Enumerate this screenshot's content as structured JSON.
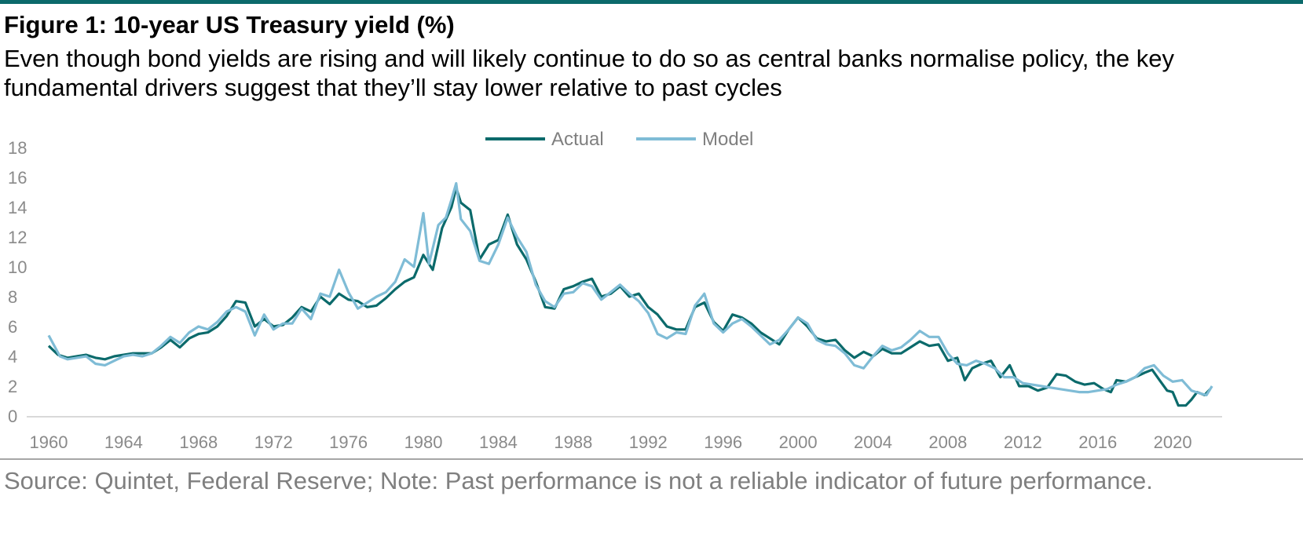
{
  "header": {
    "title": "Figure 1: 10-year US Treasury yield (%)",
    "subtitle": "Even though bond yields are rising and will likely continue to do so as central banks normalise policy, the key fundamental drivers suggest that they’ll stay lower relative to past cycles"
  },
  "footer": {
    "source": "Source: Quintet, Federal Reserve; Note: Past performance is not a reliable indicator of future performance."
  },
  "colors": {
    "actual": "#0b6a6b",
    "model": "#7fbcd6",
    "axis": "#d9d9d9",
    "tick_text": "#8a8a8a",
    "accent_bar": "#0b6a6b"
  },
  "chart_data": {
    "type": "line",
    "legend_position": "top-center",
    "grid": false,
    "xlim": [
      1960,
      2022.3
    ],
    "ylim": [
      0,
      18
    ],
    "xticks": [
      "1960",
      "1964",
      "1968",
      "1972",
      "1976",
      "1980",
      "1984",
      "1988",
      "1992",
      "1996",
      "2000",
      "2004",
      "2008",
      "2012",
      "2016",
      "2020"
    ],
    "yticks": [
      "0",
      "2",
      "4",
      "6",
      "8",
      "10",
      "12",
      "14",
      "16",
      "18"
    ],
    "series": [
      {
        "name": "Actual",
        "color": "#0b6a6b",
        "points": [
          [
            1960.0,
            4.7
          ],
          [
            1960.5,
            4.1
          ],
          [
            1961.0,
            3.9
          ],
          [
            1961.5,
            4.0
          ],
          [
            1962.0,
            4.1
          ],
          [
            1962.5,
            3.9
          ],
          [
            1963.0,
            3.8
          ],
          [
            1963.5,
            4.0
          ],
          [
            1964.0,
            4.1
          ],
          [
            1964.5,
            4.2
          ],
          [
            1965.0,
            4.2
          ],
          [
            1965.5,
            4.2
          ],
          [
            1966.0,
            4.6
          ],
          [
            1966.5,
            5.1
          ],
          [
            1967.0,
            4.6
          ],
          [
            1967.5,
            5.2
          ],
          [
            1968.0,
            5.5
          ],
          [
            1968.5,
            5.6
          ],
          [
            1969.0,
            6.0
          ],
          [
            1969.5,
            6.7
          ],
          [
            1970.0,
            7.7
          ],
          [
            1970.5,
            7.6
          ],
          [
            1971.0,
            6.0
          ],
          [
            1971.5,
            6.5
          ],
          [
            1972.0,
            6.0
          ],
          [
            1972.5,
            6.1
          ],
          [
            1973.0,
            6.6
          ],
          [
            1973.5,
            7.3
          ],
          [
            1974.0,
            7.0
          ],
          [
            1974.5,
            8.0
          ],
          [
            1975.0,
            7.5
          ],
          [
            1975.5,
            8.2
          ],
          [
            1976.0,
            7.8
          ],
          [
            1976.5,
            7.7
          ],
          [
            1977.0,
            7.3
          ],
          [
            1977.5,
            7.4
          ],
          [
            1978.0,
            7.9
          ],
          [
            1978.5,
            8.5
          ],
          [
            1979.0,
            9.0
          ],
          [
            1979.5,
            9.3
          ],
          [
            1980.0,
            10.8
          ],
          [
            1980.5,
            9.8
          ],
          [
            1981.0,
            12.6
          ],
          [
            1981.5,
            14.0
          ],
          [
            1981.75,
            15.3
          ],
          [
            1982.0,
            14.3
          ],
          [
            1982.5,
            13.8
          ],
          [
            1983.0,
            10.5
          ],
          [
            1983.5,
            11.5
          ],
          [
            1984.0,
            11.8
          ],
          [
            1984.5,
            13.5
          ],
          [
            1985.0,
            11.5
          ],
          [
            1985.5,
            10.5
          ],
          [
            1986.0,
            9.0
          ],
          [
            1986.5,
            7.3
          ],
          [
            1987.0,
            7.2
          ],
          [
            1987.5,
            8.5
          ],
          [
            1988.0,
            8.7
          ],
          [
            1988.5,
            9.0
          ],
          [
            1989.0,
            9.2
          ],
          [
            1989.5,
            8.0
          ],
          [
            1990.0,
            8.2
          ],
          [
            1990.5,
            8.7
          ],
          [
            1991.0,
            8.0
          ],
          [
            1991.5,
            8.2
          ],
          [
            1992.0,
            7.3
          ],
          [
            1992.5,
            6.8
          ],
          [
            1993.0,
            6.0
          ],
          [
            1993.5,
            5.8
          ],
          [
            1994.0,
            5.8
          ],
          [
            1994.5,
            7.3
          ],
          [
            1995.0,
            7.6
          ],
          [
            1995.5,
            6.3
          ],
          [
            1996.0,
            5.7
          ],
          [
            1996.5,
            6.8
          ],
          [
            1997.0,
            6.6
          ],
          [
            1997.5,
            6.2
          ],
          [
            1998.0,
            5.6
          ],
          [
            1998.5,
            5.2
          ],
          [
            1999.0,
            4.8
          ],
          [
            1999.5,
            5.8
          ],
          [
            2000.0,
            6.6
          ],
          [
            2000.5,
            6.0
          ],
          [
            2001.0,
            5.2
          ],
          [
            2001.5,
            5.0
          ],
          [
            2002.0,
            5.1
          ],
          [
            2002.5,
            4.4
          ],
          [
            2003.0,
            3.9
          ],
          [
            2003.5,
            4.3
          ],
          [
            2004.0,
            4.0
          ],
          [
            2004.5,
            4.5
          ],
          [
            2005.0,
            4.2
          ],
          [
            2005.5,
            4.2
          ],
          [
            2006.0,
            4.6
          ],
          [
            2006.5,
            5.0
          ],
          [
            2007.0,
            4.7
          ],
          [
            2007.5,
            4.8
          ],
          [
            2008.0,
            3.7
          ],
          [
            2008.5,
            3.9
          ],
          [
            2008.9,
            2.4
          ],
          [
            2009.3,
            3.2
          ],
          [
            2009.8,
            3.5
          ],
          [
            2010.3,
            3.7
          ],
          [
            2010.8,
            2.6
          ],
          [
            2011.3,
            3.4
          ],
          [
            2011.8,
            2.0
          ],
          [
            2012.3,
            2.0
          ],
          [
            2012.8,
            1.7
          ],
          [
            2013.3,
            1.9
          ],
          [
            2013.8,
            2.8
          ],
          [
            2014.3,
            2.7
          ],
          [
            2014.8,
            2.3
          ],
          [
            2015.3,
            2.1
          ],
          [
            2015.8,
            2.2
          ],
          [
            2016.3,
            1.8
          ],
          [
            2016.7,
            1.6
          ],
          [
            2017.0,
            2.4
          ],
          [
            2017.5,
            2.3
          ],
          [
            2018.0,
            2.6
          ],
          [
            2018.5,
            2.9
          ],
          [
            2018.9,
            3.1
          ],
          [
            2019.3,
            2.4
          ],
          [
            2019.7,
            1.7
          ],
          [
            2020.0,
            1.6
          ],
          [
            2020.3,
            0.7
          ],
          [
            2020.7,
            0.7
          ],
          [
            2021.0,
            1.1
          ],
          [
            2021.3,
            1.6
          ],
          [
            2021.7,
            1.4
          ],
          [
            2022.0,
            1.8
          ]
        ]
      },
      {
        "name": "Model",
        "color": "#7fbcd6",
        "points": [
          [
            1960.0,
            5.4
          ],
          [
            1960.3,
            4.7
          ],
          [
            1960.6,
            4.0
          ],
          [
            1961.0,
            3.8
          ],
          [
            1961.5,
            3.9
          ],
          [
            1962.0,
            4.0
          ],
          [
            1962.5,
            3.5
          ],
          [
            1963.0,
            3.4
          ],
          [
            1963.5,
            3.7
          ],
          [
            1964.0,
            4.0
          ],
          [
            1964.5,
            4.1
          ],
          [
            1965.0,
            4.0
          ],
          [
            1965.5,
            4.2
          ],
          [
            1966.0,
            4.7
          ],
          [
            1966.5,
            5.3
          ],
          [
            1967.0,
            4.9
          ],
          [
            1967.5,
            5.6
          ],
          [
            1968.0,
            6.0
          ],
          [
            1968.5,
            5.8
          ],
          [
            1969.0,
            6.3
          ],
          [
            1969.5,
            7.0
          ],
          [
            1970.0,
            7.3
          ],
          [
            1970.5,
            7.0
          ],
          [
            1971.0,
            5.4
          ],
          [
            1971.5,
            6.8
          ],
          [
            1972.0,
            5.8
          ],
          [
            1972.5,
            6.2
          ],
          [
            1973.0,
            6.2
          ],
          [
            1973.5,
            7.2
          ],
          [
            1974.0,
            6.5
          ],
          [
            1974.5,
            8.2
          ],
          [
            1975.0,
            8.0
          ],
          [
            1975.5,
            9.8
          ],
          [
            1976.0,
            8.3
          ],
          [
            1976.5,
            7.2
          ],
          [
            1977.0,
            7.6
          ],
          [
            1977.5,
            8.0
          ],
          [
            1978.0,
            8.3
          ],
          [
            1978.5,
            9.0
          ],
          [
            1979.0,
            10.5
          ],
          [
            1979.5,
            10.0
          ],
          [
            1980.0,
            13.6
          ],
          [
            1980.3,
            10.2
          ],
          [
            1980.8,
            12.8
          ],
          [
            1981.2,
            13.3
          ],
          [
            1981.5,
            14.5
          ],
          [
            1981.75,
            15.6
          ],
          [
            1982.0,
            13.2
          ],
          [
            1982.5,
            12.4
          ],
          [
            1983.0,
            10.4
          ],
          [
            1983.5,
            10.2
          ],
          [
            1984.0,
            11.5
          ],
          [
            1984.5,
            13.3
          ],
          [
            1985.0,
            12.0
          ],
          [
            1985.5,
            11.0
          ],
          [
            1986.0,
            8.8
          ],
          [
            1986.5,
            7.7
          ],
          [
            1987.0,
            7.3
          ],
          [
            1987.5,
            8.2
          ],
          [
            1988.0,
            8.3
          ],
          [
            1988.5,
            8.9
          ],
          [
            1989.0,
            8.7
          ],
          [
            1989.5,
            7.8
          ],
          [
            1990.0,
            8.3
          ],
          [
            1990.5,
            8.8
          ],
          [
            1991.0,
            8.2
          ],
          [
            1991.5,
            7.7
          ],
          [
            1992.0,
            6.9
          ],
          [
            1992.5,
            5.5
          ],
          [
            1993.0,
            5.2
          ],
          [
            1993.5,
            5.6
          ],
          [
            1994.0,
            5.5
          ],
          [
            1994.5,
            7.4
          ],
          [
            1995.0,
            8.2
          ],
          [
            1995.5,
            6.2
          ],
          [
            1996.0,
            5.6
          ],
          [
            1996.5,
            6.2
          ],
          [
            1997.0,
            6.5
          ],
          [
            1997.5,
            6.0
          ],
          [
            1998.0,
            5.4
          ],
          [
            1998.5,
            4.8
          ],
          [
            1999.0,
            5.1
          ],
          [
            1999.5,
            5.8
          ],
          [
            2000.0,
            6.6
          ],
          [
            2000.5,
            6.2
          ],
          [
            2001.0,
            5.1
          ],
          [
            2001.5,
            4.8
          ],
          [
            2002.0,
            4.7
          ],
          [
            2002.5,
            4.2
          ],
          [
            2003.0,
            3.4
          ],
          [
            2003.5,
            3.2
          ],
          [
            2004.0,
            4.0
          ],
          [
            2004.5,
            4.7
          ],
          [
            2005.0,
            4.4
          ],
          [
            2005.5,
            4.6
          ],
          [
            2006.0,
            5.1
          ],
          [
            2006.5,
            5.7
          ],
          [
            2007.0,
            5.3
          ],
          [
            2007.5,
            5.3
          ],
          [
            2008.0,
            4.2
          ],
          [
            2008.5,
            3.5
          ],
          [
            2009.0,
            3.4
          ],
          [
            2009.5,
            3.7
          ],
          [
            2010.0,
            3.5
          ],
          [
            2010.5,
            3.2
          ],
          [
            2011.0,
            2.6
          ],
          [
            2011.5,
            2.6
          ],
          [
            2012.0,
            2.2
          ],
          [
            2012.5,
            2.1
          ],
          [
            2013.0,
            2.0
          ],
          [
            2013.5,
            1.9
          ],
          [
            2014.0,
            1.8
          ],
          [
            2014.5,
            1.7
          ],
          [
            2015.0,
            1.6
          ],
          [
            2015.5,
            1.6
          ],
          [
            2016.0,
            1.7
          ],
          [
            2016.5,
            1.8
          ],
          [
            2017.0,
            2.1
          ],
          [
            2017.5,
            2.3
          ],
          [
            2018.0,
            2.6
          ],
          [
            2018.5,
            3.2
          ],
          [
            2019.0,
            3.4
          ],
          [
            2019.5,
            2.7
          ],
          [
            2020.0,
            2.3
          ],
          [
            2020.5,
            2.4
          ],
          [
            2021.0,
            1.7
          ],
          [
            2021.5,
            1.5
          ],
          [
            2021.8,
            1.4
          ],
          [
            2022.1,
            2.0
          ]
        ]
      }
    ]
  }
}
